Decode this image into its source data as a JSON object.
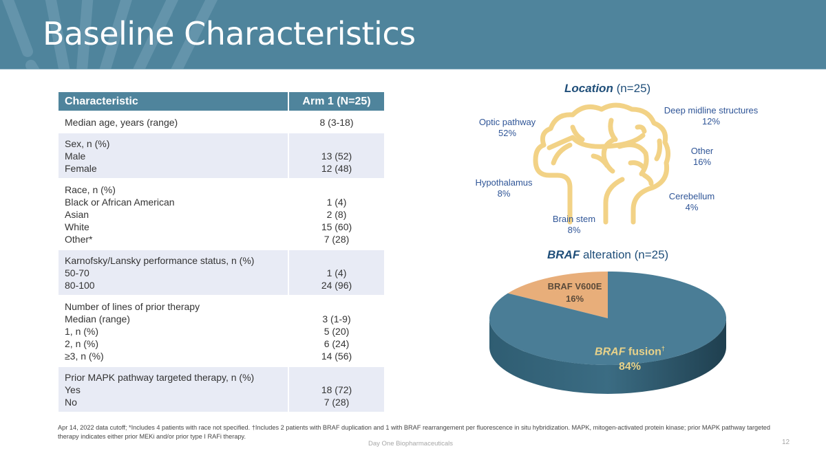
{
  "header": {
    "title": "Baseline Characteristics"
  },
  "table": {
    "headers": [
      "Characteristic",
      "Arm 1 (N=25)"
    ],
    "groups": [
      {
        "rows": [
          {
            "label": "Median age, years (range)",
            "value": "8 (3-18)"
          }
        ]
      },
      {
        "rows": [
          {
            "label": "Sex, n (%)",
            "value": ""
          },
          {
            "label": "Male",
            "value": "13 (52)"
          },
          {
            "label": "Female",
            "value": "12 (48)"
          }
        ]
      },
      {
        "rows": [
          {
            "label": "Race, n (%)",
            "value": ""
          },
          {
            "label": "Black or African American",
            "value": "1 (4)"
          },
          {
            "label": "Asian",
            "value": "2 (8)"
          },
          {
            "label": "White",
            "value": "15 (60)"
          },
          {
            "label": "Other*",
            "value": "7 (28)"
          }
        ]
      },
      {
        "rows": [
          {
            "label": "Karnofsky/Lansky performance status, n (%)",
            "value": ""
          },
          {
            "label": "50-70",
            "value": "1 (4)"
          },
          {
            "label": "80-100",
            "value": "24 (96)"
          }
        ]
      },
      {
        "rows": [
          {
            "label": "Number of lines of prior therapy",
            "value": ""
          },
          {
            "label": "Median (range)",
            "value": "3 (1-9)"
          },
          {
            "label": "1, n (%)",
            "value": "5 (20)"
          },
          {
            "label": "2, n (%)",
            "value": "6 (24)"
          },
          {
            "label": "≥3, n (%)",
            "value": "14 (56)"
          }
        ]
      },
      {
        "rows": [
          {
            "label": "Prior MAPK pathway targeted therapy, n (%)",
            "value": ""
          },
          {
            "label": "Yes",
            "value": "18 (72)"
          },
          {
            "label": "No",
            "value": "7 (28)"
          }
        ]
      }
    ]
  },
  "location": {
    "title_bold": "Location",
    "title_rest": " (n=25)",
    "items": [
      {
        "name": "Optic pathway",
        "pct": "52%"
      },
      {
        "name": "Deep midline structures",
        "pct": "12%"
      },
      {
        "name": "Other",
        "pct": "16%"
      },
      {
        "name": "Hypothalamus",
        "pct": "8%"
      },
      {
        "name": "Cerebellum",
        "pct": "4%"
      },
      {
        "name": "Brain stem",
        "pct": "8%"
      }
    ],
    "icon": "brain-icon"
  },
  "chart_data": {
    "type": "pie",
    "title": "BRAF alteration (n=25)",
    "title_bold": "BRAF",
    "title_rest": " alteration (n=25)",
    "slices": [
      {
        "label": "BRAF V600E",
        "value": 16,
        "display": "16%",
        "color": "#e8ae7a"
      },
      {
        "label_italic": "BRAF",
        "label": " fusion",
        "sup": "†",
        "value": 84,
        "display": "84%",
        "color": "#4a7d96"
      }
    ]
  },
  "footnote": "Apr 14, 2022 data cutoff; *Includes 4 patients with race not specified. †Includes 2 patients with BRAF duplication and 1 with BRAF rearrangement per fluorescence in situ hybridization. MAPK, mitogen-activated protein kinase; prior MAPK pathway targeted therapy indicates either prior MEKi and/or prior type I RAFi therapy.",
  "footer": {
    "company": "Day One Biopharmaceuticals",
    "page": "12"
  },
  "colors": {
    "header": "#4f849c",
    "accent_dark": "#1f4e79",
    "label_blue": "#2f5597",
    "brain": "#f2d286",
    "row_alt": "#e8ebf5"
  }
}
